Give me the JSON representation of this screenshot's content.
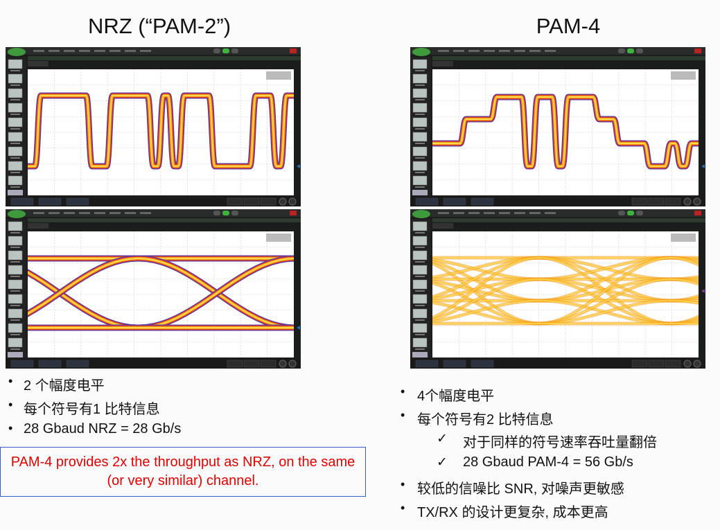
{
  "left": {
    "title": "NRZ (“PAM-2”)",
    "bullets": [
      "2 个幅度电平",
      "每个符号有1 比特信息",
      "28 Gbaud NRZ = 28 Gb/s"
    ],
    "note": "PAM-4 provides 2x the throughput as NRZ, on the same (or very similar) channel.",
    "waveform_bits": [
      0,
      1,
      1,
      1,
      1,
      1,
      0,
      0,
      1,
      1,
      1,
      1,
      0,
      1,
      0,
      1,
      1,
      1,
      0,
      0,
      0,
      0,
      1,
      1,
      0,
      1
    ],
    "eye_levels": 2
  },
  "right": {
    "title": "PAM-4",
    "bullets": [
      {
        "text": "4个幅度电平",
        "type": "bullet"
      },
      {
        "text": "每个符号有2 比特信息",
        "type": "bullet"
      },
      {
        "text": "对于同样的符号速率吞吐量翻倍",
        "type": "check"
      },
      {
        "text": "28 Gbaud PAM-4 = 56 Gb/s",
        "type": "check"
      },
      {
        "text": "较低的信噪比 SNR, 对噪声更敏感",
        "type": "bullet"
      },
      {
        "text": "TX/RX 的设计更复杂, 成本更高",
        "type": "bullet"
      }
    ],
    "waveform_levels": [
      1,
      1,
      1,
      2,
      2,
      2,
      3,
      3,
      3,
      0,
      3,
      3,
      0,
      3,
      3,
      3,
      2,
      2,
      1,
      1,
      1,
      0,
      0,
      1,
      0,
      1
    ],
    "eye_levels": 4
  },
  "colors": {
    "note_text": "#e00000",
    "note_border": "#3b5bd1",
    "scope_frame": "#1b1d1c",
    "trace_yellow": "#ffd84a",
    "trace_orange": "#f39a1b",
    "trace_red": "#d8262b",
    "trace_purple": "#5d3f9e"
  }
}
